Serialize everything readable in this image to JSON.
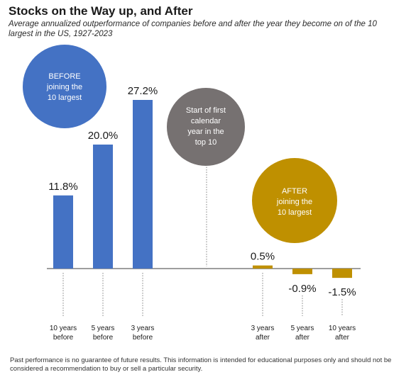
{
  "title": "Stocks on the Way up, and After",
  "subtitle": "Average annualized outperformance of companies before and after the year they become on of the 10 largest in the US, 1927-2023",
  "footnote": "Past performance is no guarantee of future results. This information is intended for educational purposes only and should not be considered a recommendation to buy or sell a particular security.",
  "bubbles": {
    "before": {
      "lines": [
        "BEFORE",
        "joining the",
        "10 largest"
      ],
      "color": "#4472c4"
    },
    "start": {
      "lines": [
        "Start of first",
        "calendar",
        "year in the",
        "top 10"
      ],
      "color": "#767171"
    },
    "after": {
      "lines": [
        "AFTER",
        "joining the",
        "10 largest"
      ],
      "color": "#bf9000"
    }
  },
  "colors": {
    "before": "#4472c4",
    "after": "#bf9000",
    "axis": "#7f7f7f"
  },
  "chart_data": {
    "type": "bar",
    "title": "Stocks on the Way up, and After",
    "categories": [
      "10 years before",
      "5 years before",
      "3 years before",
      "3 years after",
      "5 years after",
      "10 years after"
    ],
    "category_label_lines": [
      [
        "10 years",
        "before"
      ],
      [
        "5 years",
        "before"
      ],
      [
        "3 years",
        "before"
      ],
      [
        "3 years",
        "after"
      ],
      [
        "5 years",
        "after"
      ],
      [
        "10 years",
        "after"
      ]
    ],
    "values": [
      11.8,
      20.0,
      27.2,
      0.5,
      -0.9,
      -1.5
    ],
    "value_labels": [
      "11.8%",
      "20.0%",
      "27.2%",
      "0.5%",
      "-0.9%",
      "-1.5%"
    ],
    "groups": [
      "before",
      "before",
      "before",
      "after",
      "after",
      "after"
    ],
    "unit": "%",
    "grid": false
  }
}
